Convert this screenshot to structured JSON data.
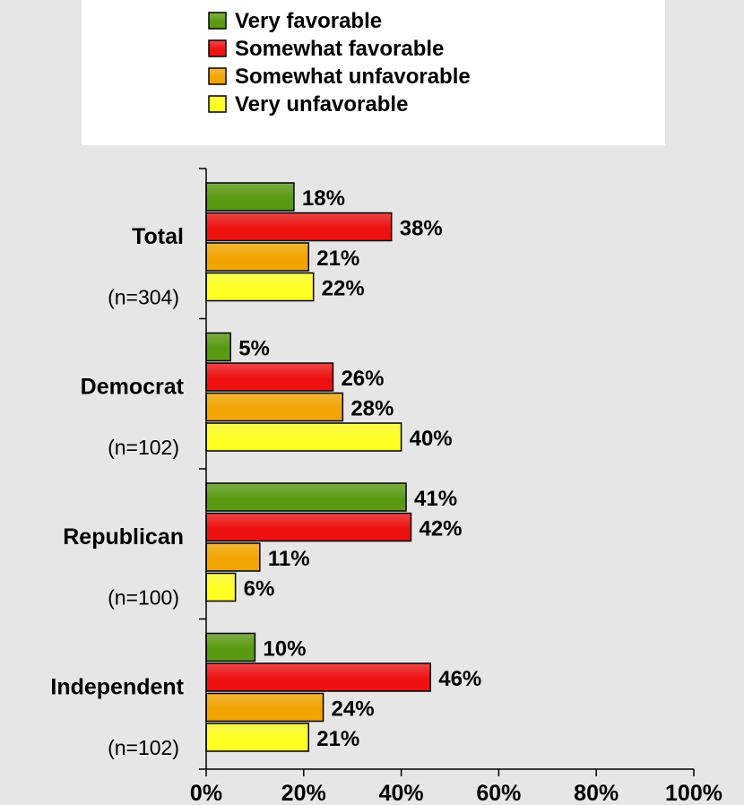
{
  "chart_data": {
    "type": "bar",
    "orientation": "horizontal",
    "categories": [
      "Total",
      "Democrat",
      "Republican",
      "Independent"
    ],
    "category_notes": [
      "(n=304)",
      "(n=102)",
      "(n=100)",
      "(n=102)"
    ],
    "series": [
      {
        "name": "Very favorable",
        "color": "#5a9a12",
        "values": [
          18,
          5,
          41,
          10
        ]
      },
      {
        "name": "Somewhat favorable",
        "color": "#ee1111",
        "values": [
          38,
          26,
          42,
          46
        ]
      },
      {
        "name": "Somewhat unfavorable",
        "color": "#f2a500",
        "values": [
          21,
          28,
          11,
          24
        ]
      },
      {
        "name": "Very unfavorable",
        "color": "#ffff22",
        "values": [
          22,
          40,
          6,
          21
        ]
      }
    ],
    "value_labels": [
      [
        "18%",
        "5%",
        "41%",
        "10%"
      ],
      [
        "38%",
        "26%",
        "42%",
        "46%"
      ],
      [
        "21%",
        "28%",
        "11%",
        "24%"
      ],
      [
        "22%",
        "40%",
        "6%",
        "21%"
      ]
    ],
    "xlim": [
      0,
      100
    ],
    "xticks": [
      0,
      20,
      40,
      60,
      80,
      100
    ],
    "xtick_labels": [
      "0%",
      "20%",
      "40%",
      "60%",
      "80%",
      "100%"
    ],
    "legend_position": "top",
    "grid": false,
    "title": "",
    "xlabel": "",
    "ylabel": ""
  }
}
